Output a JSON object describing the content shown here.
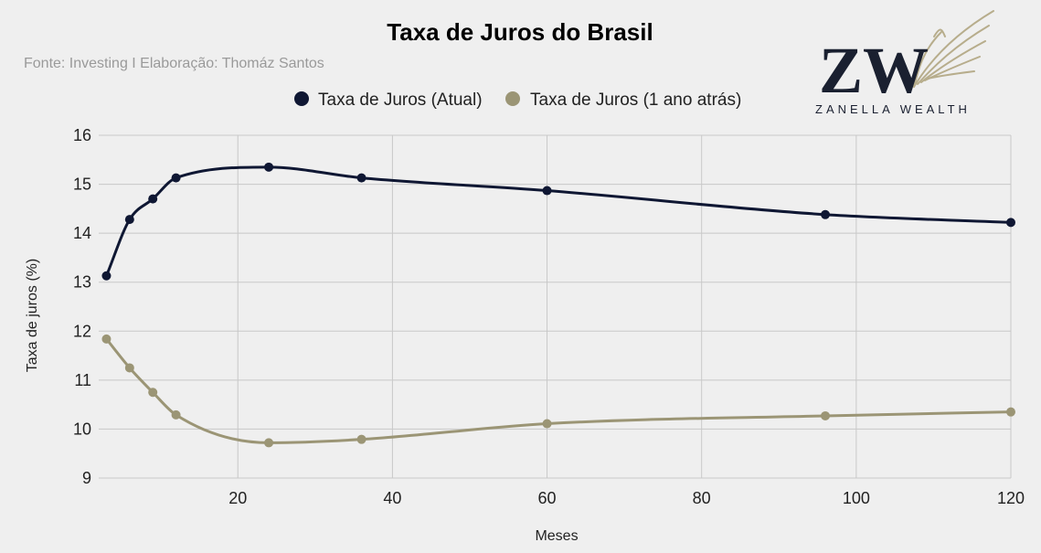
{
  "chart_data": {
    "type": "line",
    "title": "Taxa de Juros do Brasil",
    "subtitle": "Fonte: Investing I Elaboração: Thomáz Santos",
    "xlabel": "Meses",
    "ylabel": "Taxa de juros (%)",
    "xlim": [
      2,
      120
    ],
    "ylim": [
      9,
      16
    ],
    "xticks": [
      20,
      40,
      60,
      80,
      100,
      120
    ],
    "yticks": [
      9,
      10,
      11,
      12,
      13,
      14,
      15,
      16
    ],
    "grid": true,
    "legend_position": "top-center",
    "smooth": true,
    "x": [
      3,
      6,
      9,
      12,
      24,
      36,
      60,
      96,
      120
    ],
    "series": [
      {
        "name": "Taxa de Juros (Atual)",
        "color": "#0f1733",
        "values": [
          13.13,
          14.28,
          14.7,
          15.13,
          15.35,
          15.13,
          14.87,
          14.38,
          14.22
        ]
      },
      {
        "name": "Taxa de Juros (1 ano atrás)",
        "color": "#9b9575",
        "values": [
          11.84,
          11.25,
          10.75,
          10.29,
          9.72,
          9.79,
          10.11,
          10.27,
          10.35
        ]
      }
    ]
  },
  "logo": {
    "monogram": "ZW",
    "wordmark": "ZANELLA WEALTH",
    "icon": "eagle-wing-icon",
    "primary_color": "#1a2030",
    "accent_color": "#b7ad8c"
  }
}
